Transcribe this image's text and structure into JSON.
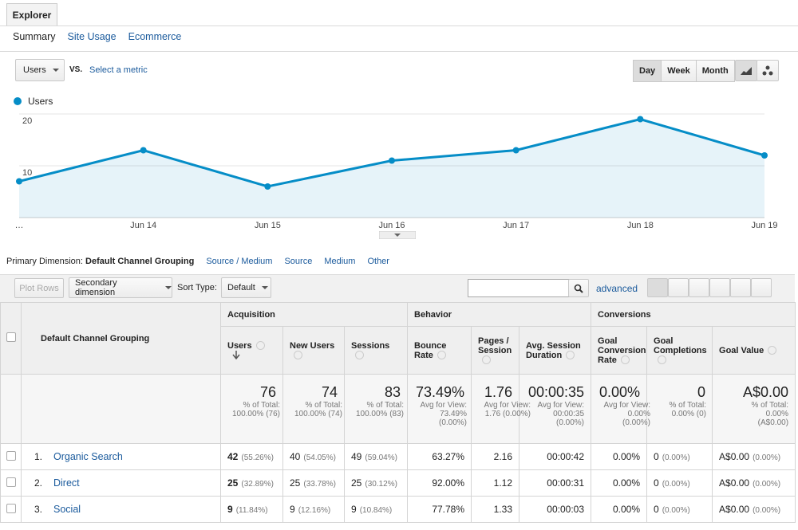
{
  "tabs": [
    "Explorer"
  ],
  "subnav": [
    "Summary",
    "Site Usage",
    "Ecommerce"
  ],
  "metric_selector": {
    "metric": "Users",
    "vs": "VS.",
    "compare": "Select a metric"
  },
  "periods": [
    "Day",
    "Week",
    "Month"
  ],
  "chart_data": {
    "type": "line",
    "categories": [
      "…",
      "Jun 14",
      "Jun 15",
      "Jun 16",
      "Jun 17",
      "Jun 18",
      "Jun 19"
    ],
    "series": [
      {
        "name": "Users",
        "color": "#058dc7",
        "values": [
          7,
          13,
          6,
          11,
          13,
          19,
          12
        ]
      }
    ],
    "ylim": [
      0,
      20
    ],
    "yticks": [
      10,
      20
    ],
    "grid": true
  },
  "dimension_bar": {
    "label": "Primary Dimension:",
    "selected": "Default Channel Grouping",
    "options": [
      "Source / Medium",
      "Source",
      "Medium",
      "Other"
    ]
  },
  "toolbar": {
    "plot_rows": "Plot Rows",
    "secondary": "Secondary dimension",
    "sort_label": "Sort Type:",
    "sort": "Default",
    "advanced": "advanced"
  },
  "table": {
    "dimension": "Default Channel Grouping",
    "groups": [
      {
        "name": "Acquisition",
        "columns": [
          "Users",
          "New Users",
          "Sessions"
        ]
      },
      {
        "name": "Behavior",
        "columns": [
          "Bounce Rate",
          "Pages / Session",
          "Avg. Session Duration"
        ]
      },
      {
        "name": "Conversions",
        "columns": [
          "Goal Conversion Rate",
          "Goal Completions",
          "Goal Value"
        ]
      }
    ],
    "totals": [
      {
        "value": "76",
        "note": "% of Total: 100.00% (76)"
      },
      {
        "value": "74",
        "note": "% of Total: 100.00% (74)"
      },
      {
        "value": "83",
        "note": "% of Total: 100.00% (83)"
      },
      {
        "value": "73.49%",
        "note": "Avg for View: 73.49% (0.00%)"
      },
      {
        "value": "1.76",
        "note": "Avg for View: 1.76 (0.00%)"
      },
      {
        "value": "00:00:35",
        "note": "Avg for View: 00:00:35 (0.00%)"
      },
      {
        "value": "0.00%",
        "note": "Avg for View: 0.00% (0.00%)"
      },
      {
        "value": "0",
        "note": "% of Total: 0.00% (0)"
      },
      {
        "value": "A$0.00",
        "note": "% of Total: 0.00% (A$0.00)"
      }
    ],
    "rows": [
      {
        "index": "1.",
        "name": "Organic Search",
        "cells": [
          {
            "value": "42",
            "share": "(55.26%)"
          },
          {
            "value": "40",
            "share": "(54.05%)"
          },
          {
            "value": "49",
            "share": "(59.04%)"
          },
          {
            "value": "63.27%"
          },
          {
            "value": "2.16"
          },
          {
            "value": "00:00:42"
          },
          {
            "value": "0.00%"
          },
          {
            "value": "0",
            "share": "(0.00%)"
          },
          {
            "value": "A$0.00",
            "share": "(0.00%)"
          }
        ]
      },
      {
        "index": "2.",
        "name": "Direct",
        "cells": [
          {
            "value": "25",
            "share": "(32.89%)"
          },
          {
            "value": "25",
            "share": "(33.78%)"
          },
          {
            "value": "25",
            "share": "(30.12%)"
          },
          {
            "value": "92.00%"
          },
          {
            "value": "1.12"
          },
          {
            "value": "00:00:31"
          },
          {
            "value": "0.00%"
          },
          {
            "value": "0",
            "share": "(0.00%)"
          },
          {
            "value": "A$0.00",
            "share": "(0.00%)"
          }
        ]
      },
      {
        "index": "3.",
        "name": "Social",
        "cells": [
          {
            "value": "9",
            "share": "(11.84%)"
          },
          {
            "value": "9",
            "share": "(12.16%)"
          },
          {
            "value": "9",
            "share": "(10.84%)"
          },
          {
            "value": "77.78%"
          },
          {
            "value": "1.33"
          },
          {
            "value": "00:00:03"
          },
          {
            "value": "0.00%"
          },
          {
            "value": "0",
            "share": "(0.00%)"
          },
          {
            "value": "A$0.00",
            "share": "(0.00%)"
          }
        ]
      }
    ]
  }
}
